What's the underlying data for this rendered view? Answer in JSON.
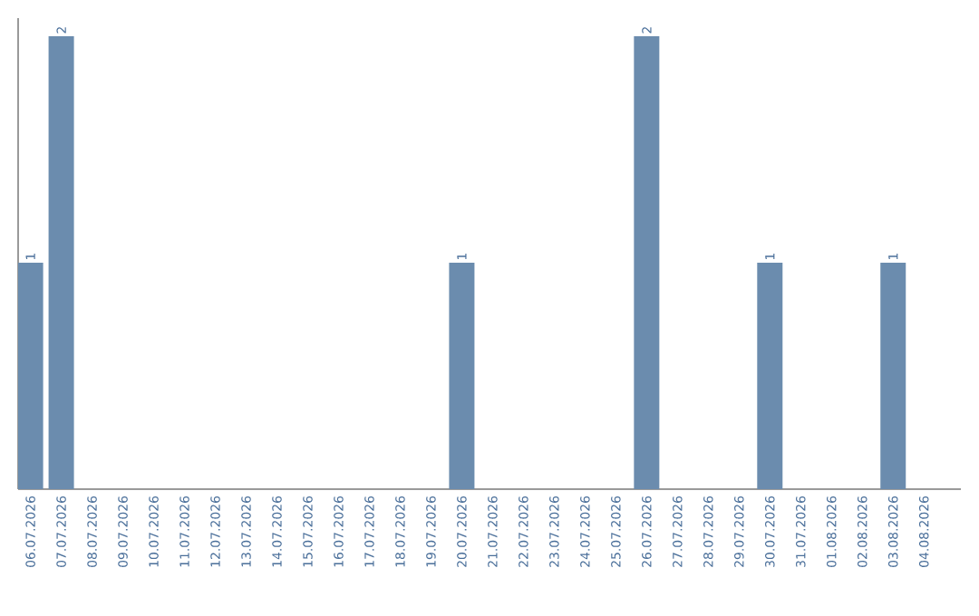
{
  "chart_data": {
    "type": "bar",
    "categories": [
      "06.07.2026",
      "07.07.2026",
      "08.07.2026",
      "09.07.2026",
      "10.07.2026",
      "11.07.2026",
      "12.07.2026",
      "13.07.2026",
      "14.07.2026",
      "15.07.2026",
      "16.07.2026",
      "17.07.2026",
      "18.07.2026",
      "19.07.2026",
      "20.07.2026",
      "21.07.2026",
      "22.07.2026",
      "23.07.2026",
      "24.07.2026",
      "25.07.2026",
      "26.07.2026",
      "27.07.2026",
      "28.07.2026",
      "29.07.2026",
      "30.07.2026",
      "31.07.2026",
      "01.08.2026",
      "02.08.2026",
      "03.08.2026",
      "04.08.2026"
    ],
    "values": [
      1,
      2,
      0,
      0,
      0,
      0,
      0,
      0,
      0,
      0,
      0,
      0,
      0,
      0,
      1,
      0,
      0,
      0,
      0,
      0,
      2,
      0,
      0,
      0,
      1,
      0,
      0,
      0,
      1,
      0
    ],
    "value_labels": [
      "1",
      "2",
      null,
      null,
      null,
      null,
      null,
      null,
      null,
      null,
      null,
      null,
      null,
      null,
      "1",
      null,
      null,
      null,
      null,
      null,
      "2",
      null,
      null,
      null,
      "1",
      null,
      null,
      null,
      "1",
      null
    ],
    "color": "#6b8cae",
    "ylim": [
      0,
      2.08
    ],
    "tick_labels": "x"
  }
}
